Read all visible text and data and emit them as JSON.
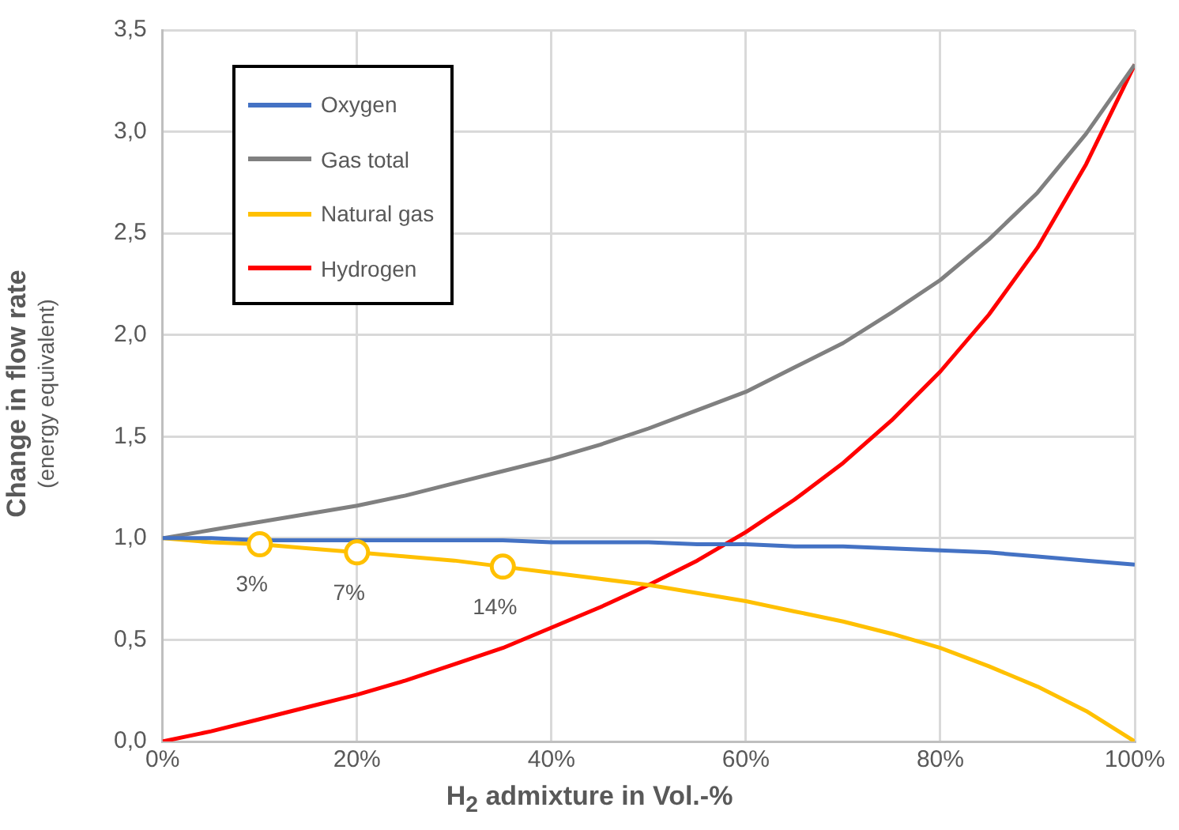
{
  "chart_data": {
    "type": "line",
    "xlabel": "H$_{2}$ admixture in Vol.-%",
    "ylabel": "Change in flow rate\n(energy equivalent)",
    "x": [
      0,
      5,
      10,
      15,
      20,
      25,
      30,
      35,
      40,
      45,
      50,
      55,
      60,
      65,
      70,
      75,
      80,
      85,
      90,
      95,
      100
    ],
    "series": [
      {
        "name": "Oxygen",
        "color": "#4472c4",
        "values": [
          1.0,
          1.0,
          0.99,
          0.99,
          0.99,
          0.99,
          0.99,
          0.99,
          0.98,
          0.98,
          0.98,
          0.97,
          0.97,
          0.96,
          0.96,
          0.95,
          0.94,
          0.93,
          0.91,
          0.89,
          0.87
        ]
      },
      {
        "name": "Gas total",
        "color": "#808080",
        "values": [
          1.0,
          1.04,
          1.08,
          1.12,
          1.16,
          1.21,
          1.27,
          1.33,
          1.39,
          1.46,
          1.54,
          1.63,
          1.72,
          1.84,
          1.96,
          2.11,
          2.27,
          2.47,
          2.7,
          2.99,
          3.33
        ]
      },
      {
        "name": "Natural gas",
        "color": "#ffc000",
        "values": [
          1.0,
          0.98,
          0.97,
          0.95,
          0.93,
          0.91,
          0.89,
          0.86,
          0.83,
          0.8,
          0.77,
          0.73,
          0.69,
          0.64,
          0.59,
          0.53,
          0.46,
          0.37,
          0.27,
          0.15,
          0.0
        ]
      },
      {
        "name": "Hydrogen",
        "color": "#ff0000",
        "values": [
          0.0,
          0.05,
          0.11,
          0.17,
          0.23,
          0.3,
          0.38,
          0.46,
          0.56,
          0.66,
          0.77,
          0.89,
          1.03,
          1.19,
          1.37,
          1.58,
          1.82,
          2.1,
          2.43,
          2.84,
          3.33
        ]
      },
      {
        "type": "scatter",
        "color": "#ffc000",
        "marker": "circle",
        "x": [
          10,
          20,
          35
        ],
        "values": [
          0.97,
          0.93,
          0.86
        ]
      }
    ],
    "annotations": [
      {
        "text": "3%",
        "x": 10,
        "y": 0.97
      },
      {
        "text": "7%",
        "x": 20,
        "y": 0.93
      },
      {
        "text": "14%",
        "x": 35,
        "y": 0.86
      }
    ],
    "xlim": [
      0,
      100
    ],
    "xticks": [
      {
        "value": 0,
        "label": "0%"
      },
      {
        "value": 20,
        "label": "20%"
      },
      {
        "value": 40,
        "label": "40%"
      },
      {
        "value": 60,
        "label": "60%"
      },
      {
        "value": 80,
        "label": "80%"
      },
      {
        "value": 100,
        "label": "100%"
      }
    ],
    "ylim": [
      0,
      3.5
    ],
    "yticks": [
      {
        "value": 0,
        "label": "0,0"
      },
      {
        "value": 0.5,
        "label": "0,5"
      },
      {
        "value": 1,
        "label": "1,0"
      },
      {
        "value": 1.5,
        "label": "1,5"
      },
      {
        "value": 2,
        "label": "2,0"
      },
      {
        "value": 2.5,
        "label": "2,5"
      },
      {
        "value": 3,
        "label": "3,0"
      },
      {
        "value": 3.5,
        "label": "3,5"
      }
    ],
    "grid": true,
    "legend": "top left",
    "marker": "none",
    "line_style": "solid"
  }
}
